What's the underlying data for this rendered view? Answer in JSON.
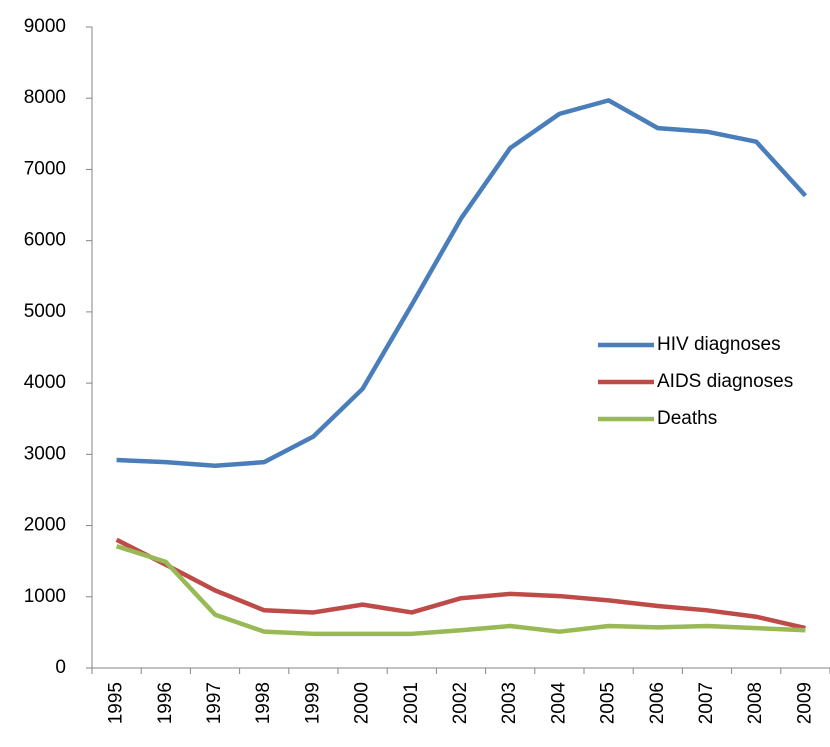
{
  "chart_data": {
    "type": "line",
    "categories": [
      "1995",
      "1996",
      "1997",
      "1998",
      "1999",
      "2000",
      "2001",
      "2002",
      "2003",
      "2004",
      "2005",
      "2006",
      "2007",
      "2008",
      "2009"
    ],
    "series": [
      {
        "name": "HIV diagnoses",
        "color": "#4a7ebb",
        "values": [
          2920,
          2890,
          2840,
          2890,
          3250,
          3920,
          5100,
          6310,
          7300,
          7780,
          7970,
          7580,
          7530,
          7390,
          6630
        ]
      },
      {
        "name": "AIDS diagnoses",
        "color": "#be4b48",
        "values": [
          1800,
          1450,
          1090,
          810,
          780,
          890,
          780,
          980,
          1040,
          1010,
          950,
          870,
          810,
          720,
          560
        ]
      },
      {
        "name": "Deaths",
        "color": "#98b954",
        "values": [
          1710,
          1490,
          750,
          510,
          480,
          480,
          480,
          530,
          590,
          510,
          590,
          570,
          590,
          560,
          530
        ]
      }
    ],
    "ylim": [
      0,
      9000
    ],
    "yticks": [
      0,
      1000,
      2000,
      3000,
      4000,
      5000,
      6000,
      7000,
      8000,
      9000
    ],
    "grid": false,
    "legend": "right"
  }
}
